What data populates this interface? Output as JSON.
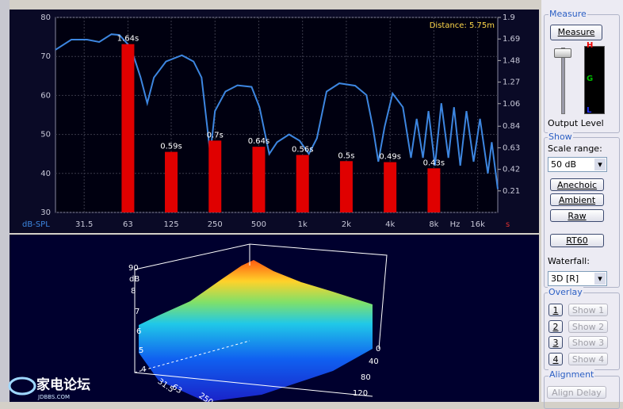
{
  "chart_data": {
    "type": "combo",
    "annotation": "Distance: 5.75m",
    "ylabel": "dB-SPL",
    "xlabel": "Hz",
    "y2label": "s",
    "xscale": "log",
    "xlim": [
      20,
      22000
    ],
    "xticks": [
      31.5,
      63,
      125,
      250,
      500,
      {
        "value": 1000,
        "label": "1k"
      },
      {
        "value": 2000,
        "label": "2k"
      },
      {
        "value": 4000,
        "label": "4k"
      },
      {
        "value": 8000,
        "label": "8k"
      },
      {
        "value": 16000,
        "label": "16k"
      }
    ],
    "ylim": [
      30,
      80
    ],
    "yticks": [
      30,
      40,
      50,
      60,
      70,
      80
    ],
    "y2lim": [
      0,
      1.9
    ],
    "y2ticks": [
      0.21,
      0.42,
      0.63,
      0.84,
      1.06,
      1.27,
      1.48,
      1.69,
      1.9
    ],
    "grid": true,
    "series": [
      {
        "type": "line",
        "color": "#3d86e0",
        "x": [
          20,
          25.7,
          33,
          40,
          48.5,
          55,
          66,
          77,
          85.5,
          95,
          115,
          148,
          178,
          202,
          221,
          232,
          250,
          295,
          357,
          446,
          506,
          590,
          668,
          808,
          955,
          1106,
          1255,
          1462,
          1790,
          2300,
          2750,
          3040,
          3320,
          3670,
          4160,
          4900,
          5570,
          6090,
          6730,
          7350,
          8140,
          9000,
          10060,
          11000,
          12150,
          13400,
          15000,
          16600,
          18800,
          20000,
          22000
        ],
        "values": [
          71.7,
          74.3,
          74.3,
          73.7,
          75.7,
          75.5,
          72.3,
          64.6,
          58,
          64.6,
          68.7,
          70.3,
          68.7,
          64.6,
          52,
          45,
          56,
          61,
          62.6,
          62.2,
          57,
          45,
          48,
          50,
          48.4,
          45,
          49,
          61,
          63.1,
          62.5,
          60.1,
          52,
          43,
          52,
          60.5,
          57,
          44,
          54,
          44,
          56,
          42,
          58,
          44,
          57,
          42,
          56,
          43,
          54,
          40,
          48,
          36
        ]
      },
      {
        "type": "bar",
        "axis": "y2",
        "color": "#e00000",
        "x": [
          63,
          125,
          250,
          500,
          1000,
          2000,
          4000,
          8000
        ],
        "values": [
          1.64,
          0.59,
          0.7,
          0.64,
          0.56,
          0.5,
          0.49,
          0.43
        ],
        "value_labels": [
          "1.64s",
          "0.59s",
          "0.7s",
          "0.64s",
          "0.56s",
          "0.5s",
          "0.49s",
          "0.43s"
        ]
      }
    ]
  },
  "waterfall": {
    "vertical_labels": [
      "90",
      "dB",
      "8",
      "7",
      "6",
      "5",
      "4"
    ],
    "frequency_labels": [
      "31.5",
      "63",
      "250"
    ],
    "time_labels": [
      "0",
      "40",
      "80",
      "120"
    ]
  },
  "watermark": {
    "title": "家电论坛",
    "site": "JDBBS.COM"
  },
  "panel": {
    "measure": {
      "title": "Measure",
      "button": "Measure",
      "meter": [
        "H",
        "G",
        "L"
      ],
      "output": "Output Level"
    },
    "show": {
      "title": "Show",
      "scale_label": "Scale range:",
      "scale_value": "50 dB",
      "buttons": [
        "Anechoic",
        "Ambient",
        "Raw"
      ],
      "rt60": "RT60",
      "waterfall_label": "Waterfall:",
      "waterfall_value": "3D [R]"
    },
    "overlay": {
      "title": "Overlay",
      "numbers": [
        "1",
        "2",
        "3",
        "4"
      ],
      "shows": [
        "Show 1",
        "Show 2",
        "Show 3",
        "Show 4"
      ]
    },
    "alignment": {
      "title": "Alignment",
      "button": "Align Delay"
    }
  }
}
